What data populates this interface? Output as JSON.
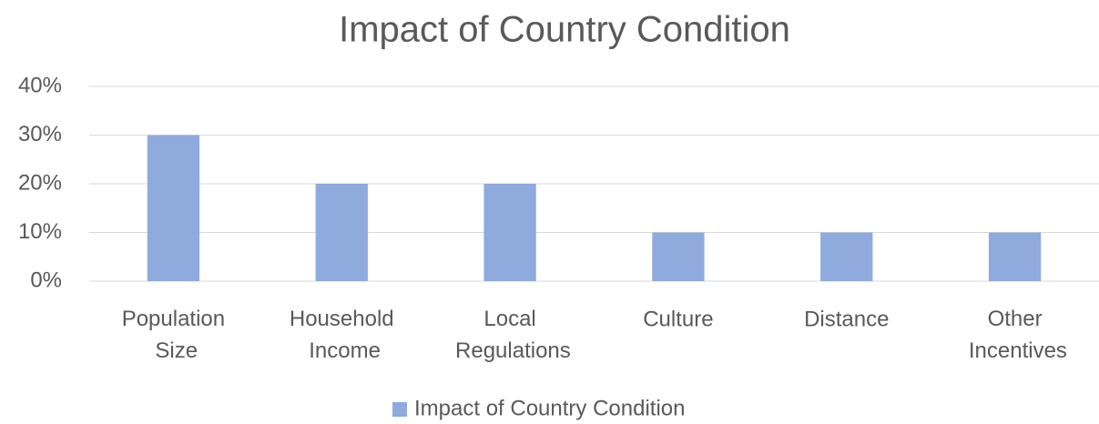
{
  "chart_data": {
    "type": "bar",
    "title": "Impact of Country Condition",
    "categories": [
      "Population Size",
      "Household Income",
      "Local Regulations",
      "Culture",
      "Distance",
      "Other Incentives"
    ],
    "series": [
      {
        "name": "Impact of Country Condition",
        "color": "#8faadc",
        "values": [
          30,
          20,
          20,
          10,
          10,
          10
        ]
      }
    ],
    "ylim": [
      0,
      40
    ],
    "yticks": [
      {
        "value": 0,
        "label": "0%"
      },
      {
        "value": 10,
        "label": "10%"
      },
      {
        "value": 20,
        "label": "20%"
      },
      {
        "value": 30,
        "label": "30%"
      },
      {
        "value": 40,
        "label": "40%"
      }
    ],
    "grid": true,
    "legend": "bottom"
  }
}
